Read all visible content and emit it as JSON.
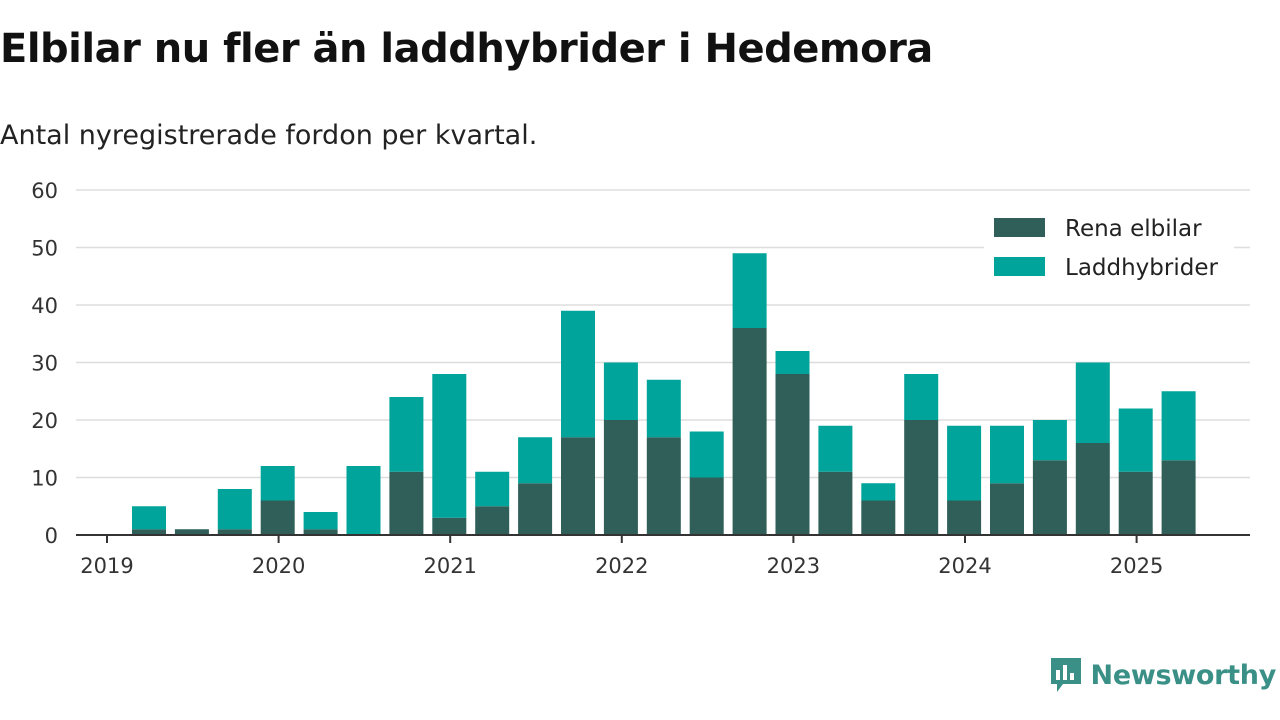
{
  "title": "Elbilar nu fler än laddhybrider i Hedemora",
  "subtitle": "Antal nyregistrerade fordon per kvartal.",
  "brand": "Newsworthy",
  "colors": {
    "rena_elbilar": "#2f5f58",
    "laddhybrider": "#00a49a",
    "grid": "#dddddd",
    "axis": "#333333",
    "brand": "#3a8f86"
  },
  "chart_data": {
    "type": "bar",
    "stacked": true,
    "categories": [
      "2019 Q2",
      "2019 Q3",
      "2019 Q4",
      "2020 Q1",
      "2020 Q2",
      "2020 Q3",
      "2020 Q4",
      "2021 Q1",
      "2021 Q2",
      "2021 Q3",
      "2021 Q4",
      "2022 Q1",
      "2022 Q2",
      "2022 Q3",
      "2022 Q4",
      "2023 Q1",
      "2023 Q2",
      "2023 Q3",
      "2023 Q4",
      "2024 Q1",
      "2024 Q2",
      "2024 Q3",
      "2024 Q4",
      "2025 Q1",
      "2025 Q2"
    ],
    "series": [
      {
        "name": "Rena elbilar",
        "values": [
          1,
          1,
          1,
          6,
          1,
          0,
          11,
          3,
          5,
          9,
          17,
          20,
          17,
          10,
          36,
          28,
          11,
          6,
          20,
          6,
          9,
          13,
          16,
          11,
          13
        ]
      },
      {
        "name": "Laddhybrider",
        "values": [
          4,
          0,
          7,
          6,
          3,
          12,
          13,
          25,
          6,
          8,
          22,
          10,
          10,
          8,
          13,
          4,
          8,
          3,
          8,
          13,
          10,
          7,
          14,
          11,
          12
        ]
      }
    ],
    "x_ticks": [
      "2019",
      "2020",
      "2021",
      "2022",
      "2023",
      "2024",
      "2025"
    ],
    "y_ticks": [
      0,
      10,
      20,
      30,
      40,
      50,
      60
    ],
    "ylim": [
      0,
      60
    ],
    "xlabel": "",
    "ylabel": "",
    "grid": true,
    "legend_position": "top-right"
  }
}
